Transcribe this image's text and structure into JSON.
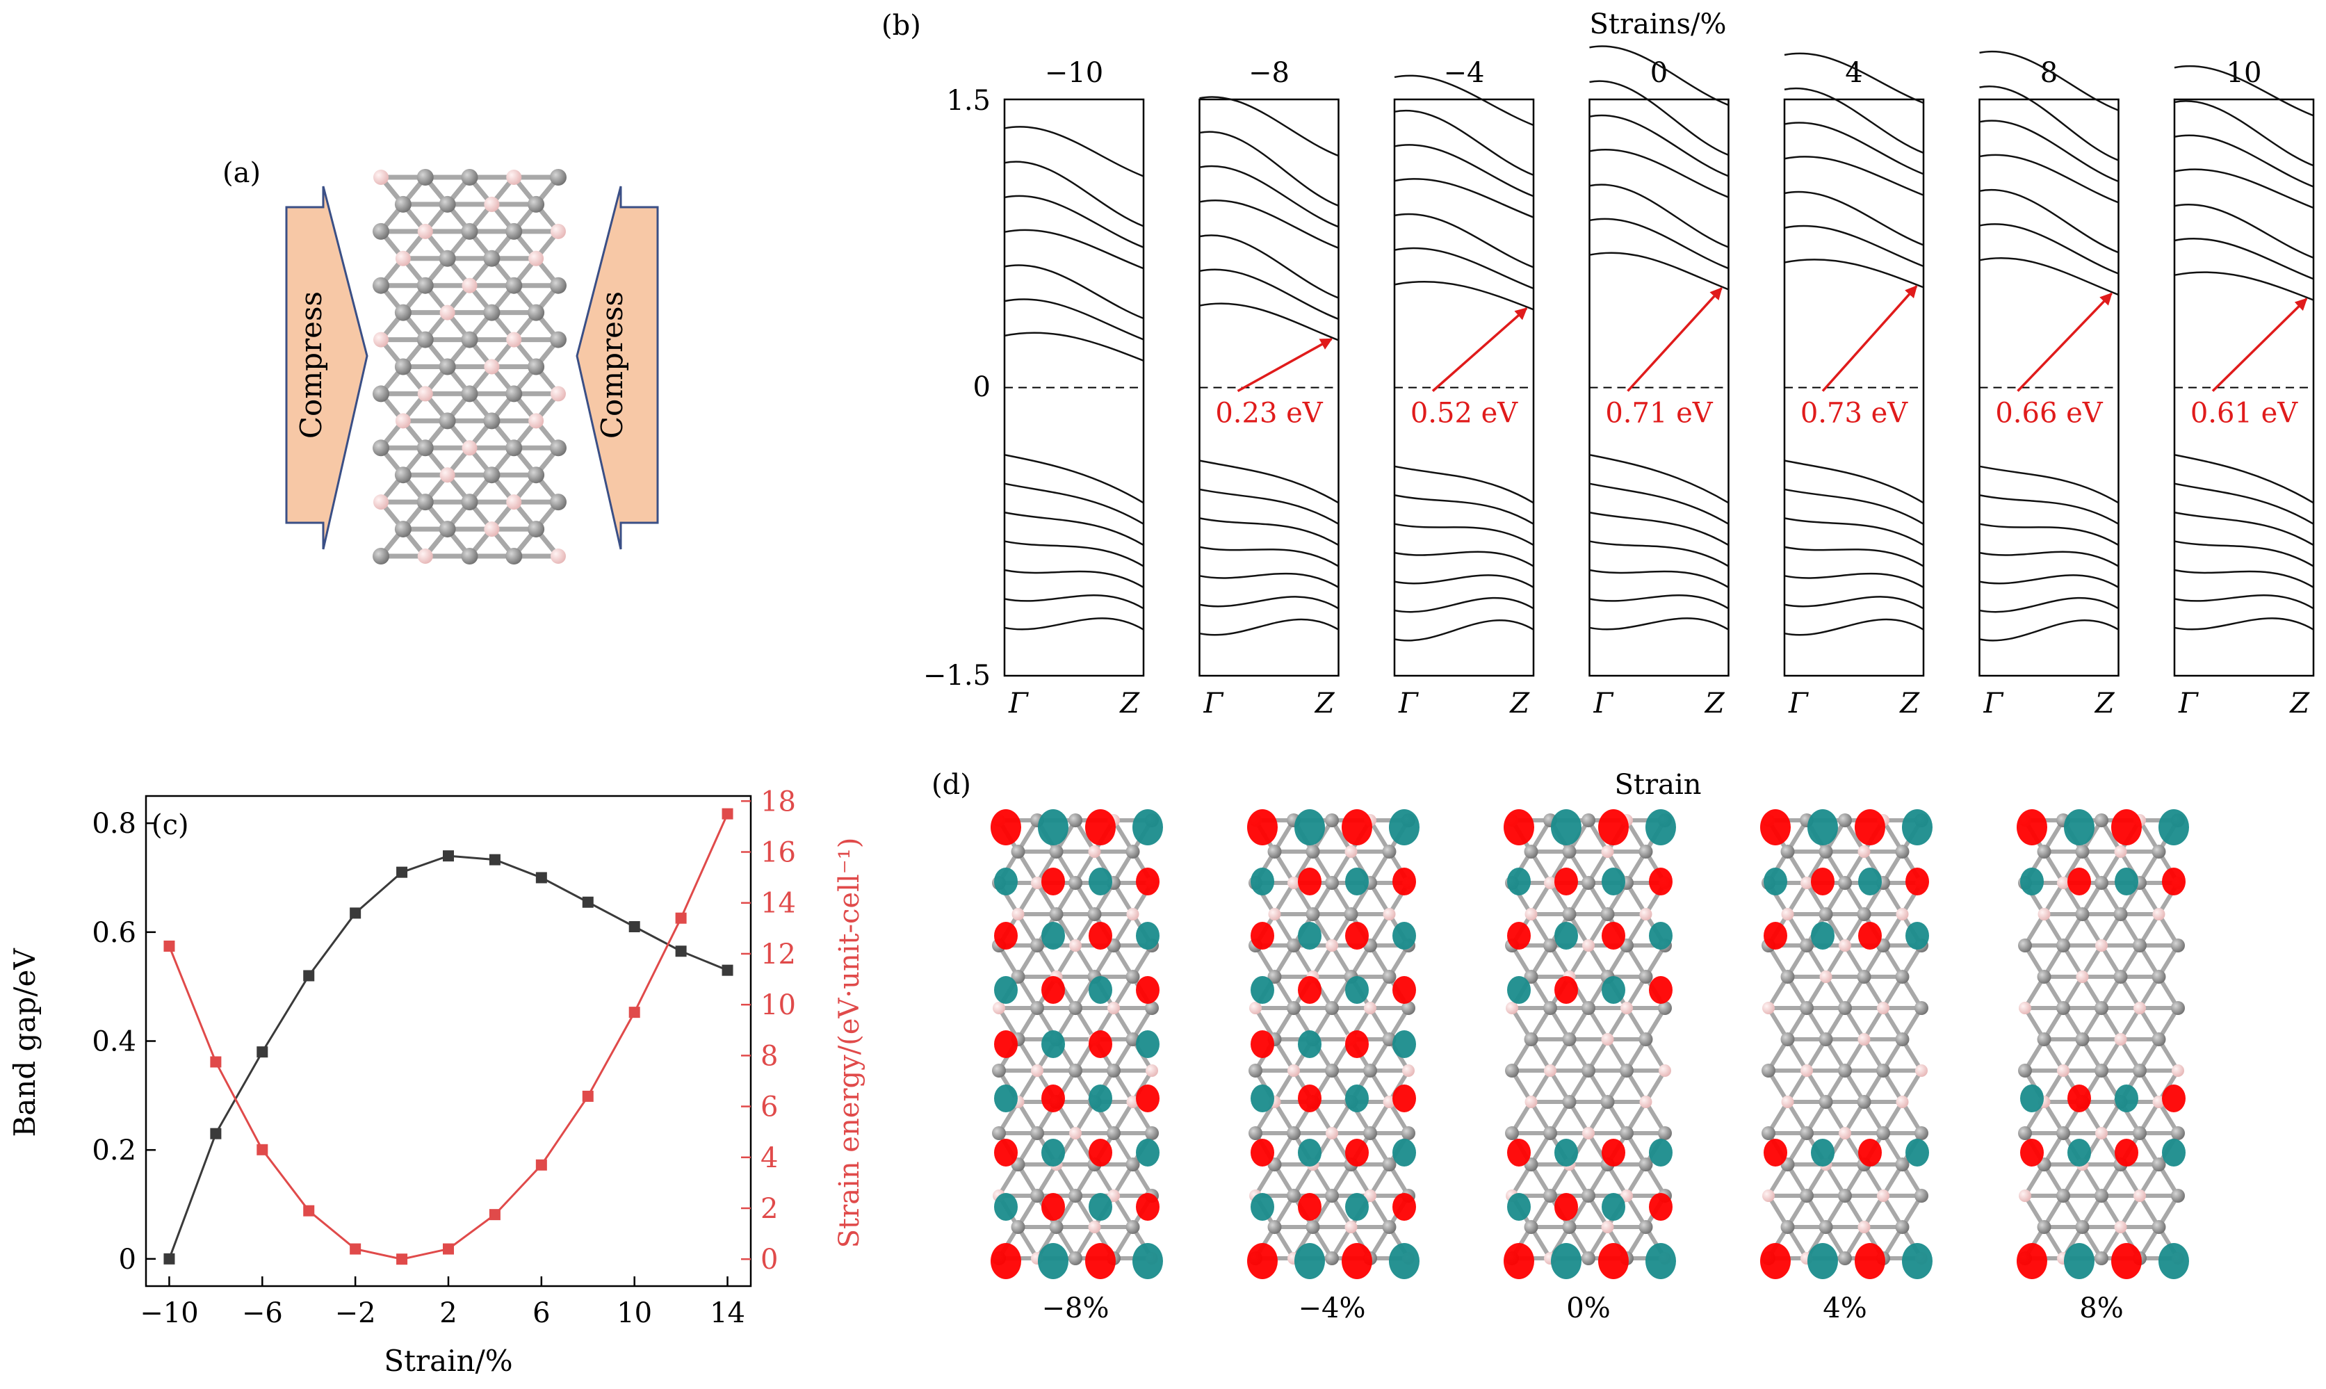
{
  "panels": {
    "a": {
      "label": "(a)",
      "arrow_text": "Compress",
      "colors": {
        "arrow_fill": "#f7c8a6",
        "arrow_edge": "#3a4f86",
        "carbon": "#8c8c8c",
        "boron": "#f4c9c9",
        "bond": "#a8a8a8"
      }
    },
    "b": {
      "label": "(b)",
      "title": "Strains/%",
      "y_ticks": [
        "1.5",
        "0",
        "−1.5"
      ],
      "x_ticks": [
        "Γ",
        "Z"
      ],
      "colors": {
        "bands": "#111111",
        "annotation": "#e01b1b"
      },
      "subplots": [
        {
          "strain": "−10",
          "gap": ""
        },
        {
          "strain": "−8",
          "gap": "0.23 eV"
        },
        {
          "strain": "−4",
          "gap": "0.52 eV"
        },
        {
          "strain": "0",
          "gap": "0.71 eV"
        },
        {
          "strain": "4",
          "gap": "0.73 eV"
        },
        {
          "strain": "8",
          "gap": "0.66 eV"
        },
        {
          "strain": "10",
          "gap": "0.61 eV"
        }
      ]
    },
    "c": {
      "label": "(c)",
      "xlabel": "Strain/%",
      "ylabel_left": "Band gap/eV",
      "ylabel_right": "Strain energy/(eV·unit-cell⁻¹)",
      "x_ticks": [
        "−10",
        "−6",
        "−2",
        "2",
        "6",
        "10",
        "14"
      ],
      "y_ticks_left": [
        "0",
        "0.2",
        "0.4",
        "0.6",
        "0.8"
      ],
      "y_ticks_right": [
        "0",
        "2",
        "4",
        "6",
        "8",
        "10",
        "12",
        "14",
        "16",
        "18"
      ],
      "colors": {
        "left_series": "#3a3a3a",
        "right_series": "#e04a4a"
      }
    },
    "d": {
      "label": "(d)",
      "title": "Strain",
      "captions": [
        "−8%",
        "−4%",
        "0%",
        "4%",
        "8%"
      ],
      "colors": {
        "lobe_a": "#ff0000",
        "lobe_b": "#1a8c8c",
        "carbon": "#8c8c8c",
        "boron": "#f4c9c9"
      }
    }
  },
  "chart_data": [
    {
      "type": "line",
      "panel": "c",
      "xlabel": "Strain/%",
      "x": [
        -10,
        -8,
        -6,
        -4,
        -2,
        0,
        2,
        4,
        6,
        8,
        10,
        12,
        14
      ],
      "xlim": [
        -11,
        15
      ],
      "series": [
        {
          "axis": "left",
          "ylabel": "Band gap/eV",
          "ylim": [
            -0.05,
            0.85
          ],
          "values": [
            0.0,
            0.23,
            0.38,
            0.52,
            0.635,
            0.71,
            0.74,
            0.733,
            0.7,
            0.655,
            0.61,
            0.565,
            0.53
          ]
        },
        {
          "axis": "right",
          "ylabel": "Strain energy/(eV·unit-cell⁻¹)",
          "ylim": [
            -1.06,
            18.2
          ],
          "values": [
            12.3,
            7.75,
            4.3,
            1.9,
            0.4,
            0.0,
            0.4,
            1.75,
            3.7,
            6.4,
            9.7,
            13.4,
            17.5
          ]
        }
      ],
      "markers": "square",
      "grid": false
    },
    {
      "type": "line",
      "panel": "b",
      "title": "Strains/%",
      "ylim": [
        -1.5,
        1.5
      ],
      "x_ticks": [
        "Γ",
        "Z"
      ],
      "subplots": [
        {
          "strain": -10,
          "gap_eV": null
        },
        {
          "strain": -8,
          "gap_eV": 0.23
        },
        {
          "strain": -4,
          "gap_eV": 0.52
        },
        {
          "strain": 0,
          "gap_eV": 0.71
        },
        {
          "strain": 4,
          "gap_eV": 0.73
        },
        {
          "strain": 8,
          "gap_eV": 0.66
        },
        {
          "strain": 10,
          "gap_eV": 0.61
        }
      ]
    }
  ]
}
